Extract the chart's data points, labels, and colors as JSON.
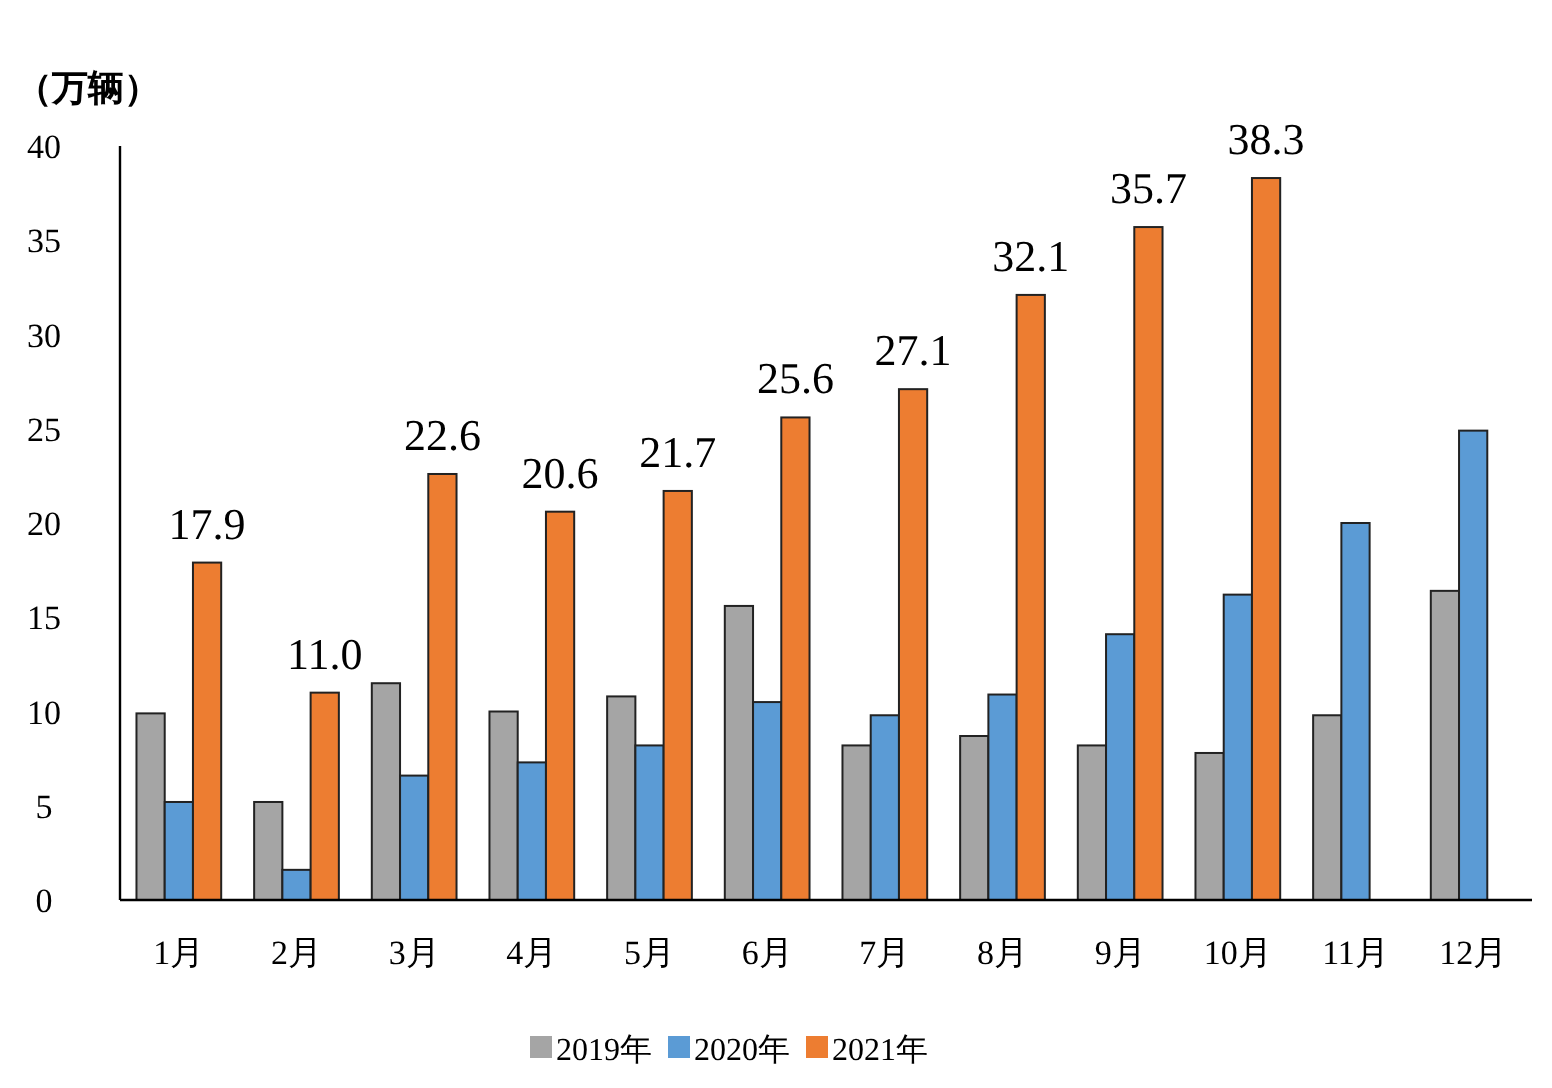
{
  "chart_data": {
    "type": "bar",
    "ylabel": "（万辆）",
    "categories": [
      "1月",
      "2月",
      "3月",
      "4月",
      "5月",
      "6月",
      "7月",
      "8月",
      "9月",
      "10月",
      "11月",
      "12月"
    ],
    "series": [
      {
        "name": "2019年",
        "color": "#a5a5a5",
        "values": [
          9.9,
          5.2,
          11.5,
          10.0,
          10.8,
          15.6,
          8.2,
          8.7,
          8.2,
          7.8,
          9.8,
          16.4
        ]
      },
      {
        "name": "2020年",
        "color": "#5b9bd5",
        "values": [
          5.2,
          1.6,
          6.6,
          7.3,
          8.2,
          10.5,
          9.8,
          10.9,
          14.1,
          16.2,
          20.0,
          24.9
        ]
      },
      {
        "name": "2021年",
        "color": "#ed7d31",
        "values": [
          17.9,
          11.0,
          22.6,
          20.6,
          21.7,
          25.6,
          27.1,
          32.1,
          35.7,
          38.3,
          null,
          null
        ],
        "value_labels": [
          "17.9",
          "11.0",
          "22.6",
          "20.6",
          "21.7",
          "25.6",
          "27.1",
          "32.1",
          "35.7",
          "38.3",
          null,
          null
        ]
      }
    ],
    "ylim": [
      0,
      40
    ],
    "yticks": [
      0,
      5,
      10,
      15,
      20,
      25,
      30,
      35,
      40
    ],
    "grid": false,
    "legend": "bottom"
  }
}
